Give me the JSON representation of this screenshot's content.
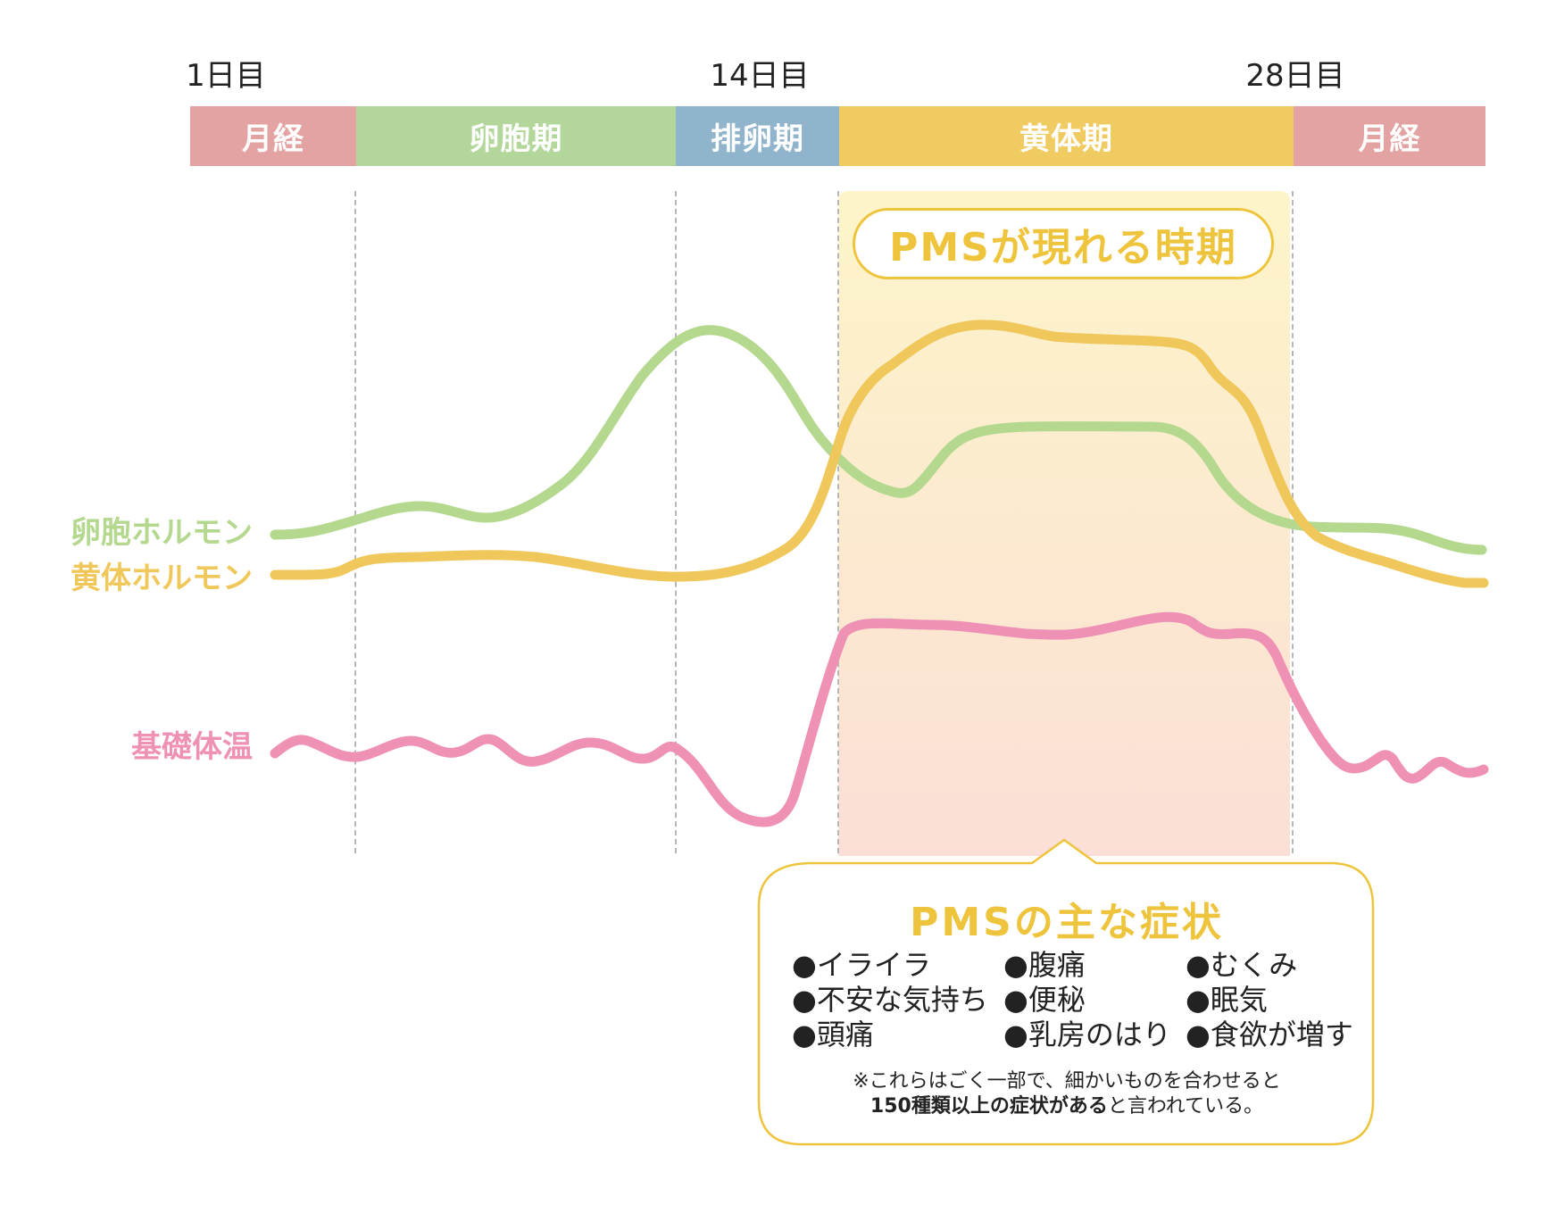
{
  "colors": {
    "menstruation": "#e4a3a3",
    "follicular": "#b3d79b",
    "ovulation": "#8fb4cb",
    "luteal": "#f0cb61",
    "follicle_hormone": "#b3d88e",
    "luteal_hormone": "#f0c75a",
    "basal_temp": "#ef91b5",
    "accent_yellow": "#efc43d",
    "band_top": "#fdf5c9",
    "band_bottom": "#fbdfd6"
  },
  "timeline": {
    "day_labels": [
      "1日目",
      "14日目",
      "28日目"
    ],
    "phases": [
      {
        "label": "月経"
      },
      {
        "label": "卵胞期"
      },
      {
        "label": "排卵期"
      },
      {
        "label": "黄体期"
      },
      {
        "label": "月経"
      }
    ]
  },
  "pms_period_label": "PMSが現れる時期",
  "series_labels": {
    "follicle_hormone": "卵胞ホルモン",
    "luteal_hormone": "黄体ホルモン",
    "basal_temp": "基礎体温"
  },
  "symptoms": {
    "title": "PMSの主な症状",
    "columns": [
      [
        "●イライラ",
        "●不安な気持ち",
        "●頭痛"
      ],
      [
        "●腹痛",
        "●便秘",
        "●乳房のはり"
      ],
      [
        "●むくみ",
        "●眠気",
        "●食欲が増す"
      ]
    ],
    "note_line1": "※これらはごく一部で、細かいものを合わせると",
    "note_bold": "150種類以上の症状がある",
    "note_tail": "と言われている。"
  }
}
